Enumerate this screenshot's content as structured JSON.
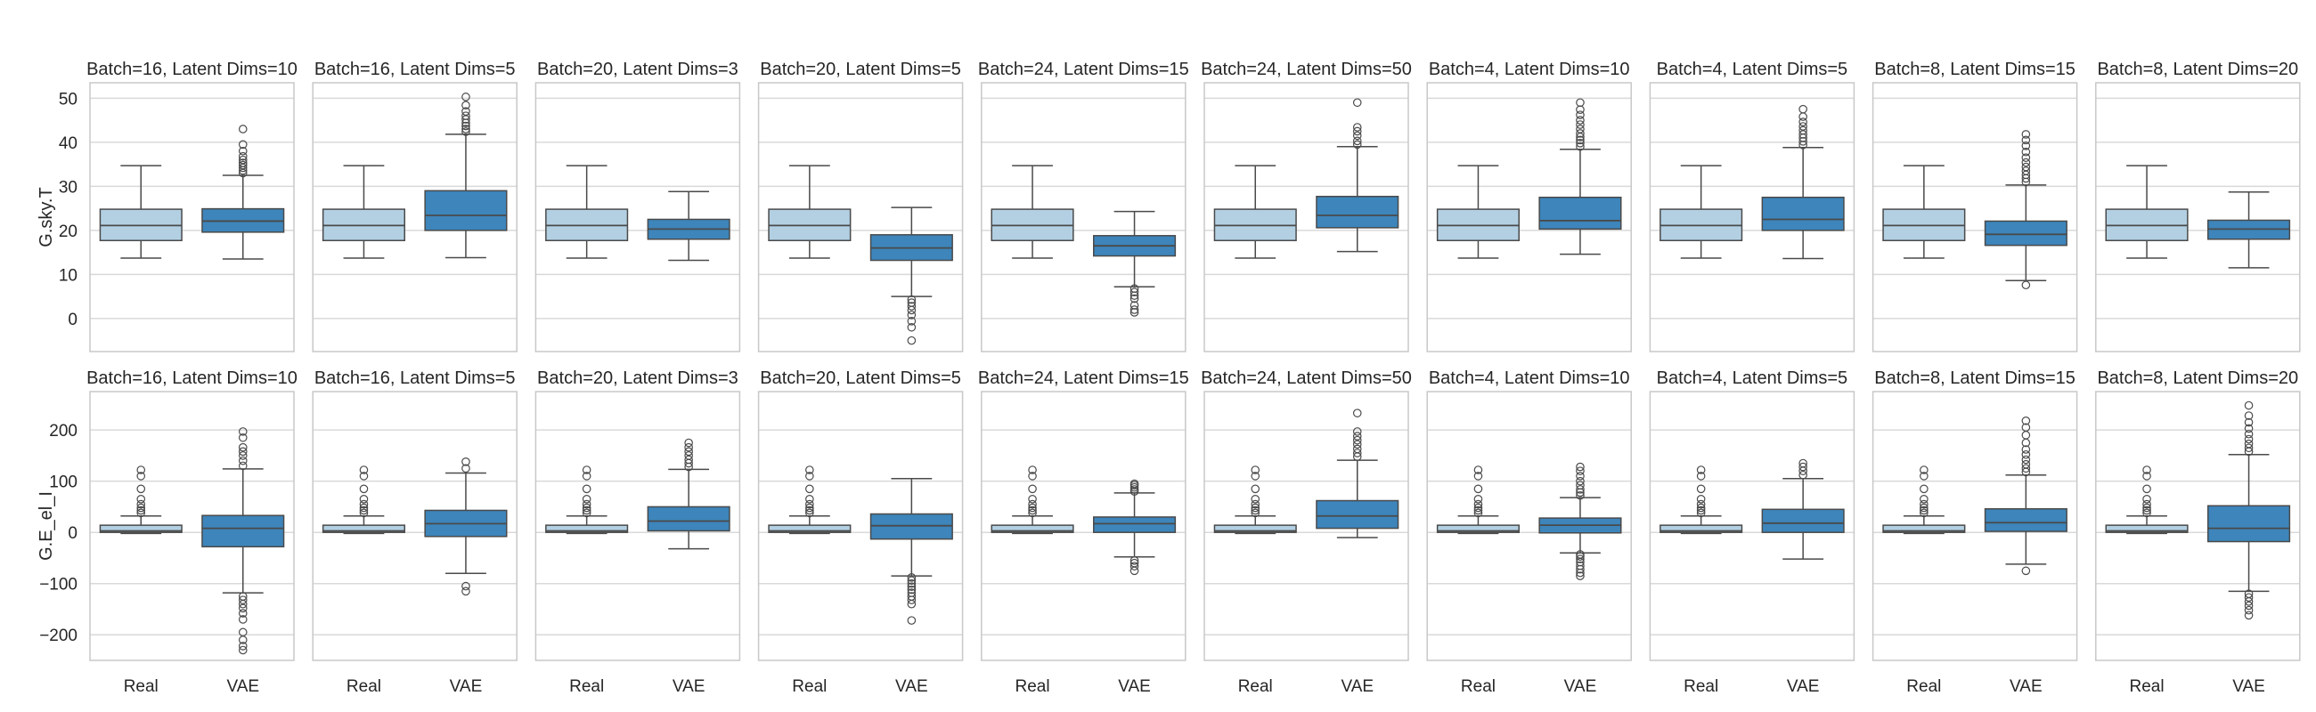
{
  "chart_data": {
    "type": "box",
    "panel_titles": [
      "Batch=16, Latent Dims=10",
      "Batch=16, Latent Dims=5",
      "Batch=20, Latent Dims=3",
      "Batch=20, Latent Dims=5",
      "Batch=24, Latent Dims=15",
      "Batch=24, Latent Dims=50",
      "Batch=4, Latent Dims=10",
      "Batch=4, Latent Dims=5",
      "Batch=8, Latent Dims=15",
      "Batch=8, Latent Dims=20"
    ],
    "categories": [
      "Real",
      "VAE"
    ],
    "colors": {
      "Real": "#b3d0e3",
      "VAE": "#3d85bb",
      "grid": "#d9d9d9",
      "frame": "#c8c8c8",
      "line": "#4a4a4a"
    },
    "grid": true,
    "rows": [
      {
        "ylabel": "G.sky.T",
        "ylim": [
          -7.5,
          53.5
        ],
        "yticks": [
          0,
          10,
          20,
          30,
          40,
          50
        ],
        "ytick_labels": [
          "0",
          "10",
          "20",
          "30",
          "40",
          "50"
        ],
        "panels": [
          {
            "Real": {
              "q1": 17.7,
              "median": 21.1,
              "q3": 24.8,
              "whislo": 13.7,
              "whishi": 34.7,
              "fliers": []
            },
            "VAE": {
              "q1": 19.6,
              "median": 22.1,
              "q3": 24.9,
              "whislo": 13.5,
              "whishi": 32.5,
              "fliers": [
                33.0,
                33.6,
                34.2,
                34.8,
                35.3,
                36.0,
                36.8,
                38.0,
                39.5,
                43.0
              ]
            }
          },
          {
            "Real": {
              "q1": 17.7,
              "median": 21.1,
              "q3": 24.8,
              "whislo": 13.7,
              "whishi": 34.7,
              "fliers": []
            },
            "VAE": {
              "q1": 20.0,
              "median": 23.4,
              "q3": 29.0,
              "whislo": 13.8,
              "whishi": 41.8,
              "fliers": [
                42.4,
                43.0,
                43.7,
                44.4,
                45.2,
                46.0,
                47.0,
                48.4,
                50.3
              ]
            }
          },
          {
            "Real": {
              "q1": 17.7,
              "median": 21.1,
              "q3": 24.8,
              "whislo": 13.7,
              "whishi": 34.7,
              "fliers": []
            },
            "VAE": {
              "q1": 18.0,
              "median": 20.3,
              "q3": 22.5,
              "whislo": 13.2,
              "whishi": 28.8,
              "fliers": []
            }
          },
          {
            "Real": {
              "q1": 17.7,
              "median": 21.1,
              "q3": 24.8,
              "whislo": 13.7,
              "whishi": 34.7,
              "fliers": []
            },
            "VAE": {
              "q1": 13.2,
              "median": 16.0,
              "q3": 19.0,
              "whislo": 5.0,
              "whishi": 25.2,
              "fliers": [
                4.3,
                3.6,
                2.8,
                1.9,
                0.8,
                -0.6,
                -2.0,
                -5.0
              ]
            }
          },
          {
            "Real": {
              "q1": 17.7,
              "median": 21.1,
              "q3": 24.8,
              "whislo": 13.7,
              "whishi": 34.7,
              "fliers": []
            },
            "VAE": {
              "q1": 14.2,
              "median": 16.5,
              "q3": 18.8,
              "whislo": 7.2,
              "whishi": 24.3,
              "fliers": [
                6.8,
                6.0,
                5.2,
                4.5,
                3.0,
                2.0,
                1.4
              ]
            }
          },
          {
            "Real": {
              "q1": 17.7,
              "median": 21.1,
              "q3": 24.8,
              "whislo": 13.7,
              "whishi": 34.7,
              "fliers": []
            },
            "VAE": {
              "q1": 20.6,
              "median": 23.4,
              "q3": 27.7,
              "whislo": 15.2,
              "whishi": 39.0,
              "fliers": [
                39.5,
                40.3,
                41.5,
                42.5,
                43.4,
                49.0
              ]
            }
          },
          {
            "Real": {
              "q1": 17.7,
              "median": 21.1,
              "q3": 24.8,
              "whislo": 13.7,
              "whishi": 34.7,
              "fliers": []
            },
            "VAE": {
              "q1": 20.3,
              "median": 22.2,
              "q3": 27.5,
              "whislo": 14.6,
              "whishi": 38.4,
              "fliers": [
                39.0,
                39.8,
                40.5,
                41.2,
                42.0,
                43.0,
                44.0,
                45.0,
                46.2,
                47.4,
                49.0
              ]
            }
          },
          {
            "Real": {
              "q1": 17.7,
              "median": 21.1,
              "q3": 24.8,
              "whislo": 13.7,
              "whishi": 34.7,
              "fliers": []
            },
            "VAE": {
              "q1": 20.0,
              "median": 22.5,
              "q3": 27.5,
              "whislo": 13.6,
              "whishi": 38.8,
              "fliers": [
                39.4,
                40.2,
                41.0,
                41.8,
                42.7,
                43.6,
                44.6,
                45.8,
                47.5
              ]
            }
          },
          {
            "Real": {
              "q1": 17.7,
              "median": 21.1,
              "q3": 24.8,
              "whislo": 13.7,
              "whishi": 34.7,
              "fliers": []
            },
            "VAE": {
              "q1": 16.6,
              "median": 19.1,
              "q3": 22.1,
              "whislo": 8.6,
              "whishi": 30.3,
              "fliers": [
                31.0,
                31.8,
                32.6,
                33.5,
                34.4,
                35.4,
                36.5,
                37.8,
                39.2,
                40.5,
                41.8,
                7.6
              ]
            }
          },
          {
            "Real": {
              "q1": 17.7,
              "median": 21.1,
              "q3": 24.8,
              "whislo": 13.7,
              "whishi": 34.7,
              "fliers": []
            },
            "VAE": {
              "q1": 18.0,
              "median": 20.3,
              "q3": 22.3,
              "whislo": 11.5,
              "whishi": 28.7,
              "fliers": []
            }
          }
        ]
      },
      {
        "ylabel": "G.E_el_I",
        "ylim": [
          -250,
          275
        ],
        "yticks": [
          -200,
          -100,
          0,
          100,
          200
        ],
        "ytick_labels": [
          "−200",
          "−100",
          "0",
          "100",
          "200"
        ],
        "panels": [
          {
            "Real": {
              "q1": 0,
              "median": 3,
              "q3": 14,
              "whislo": -2,
              "whishi": 32,
              "fliers": [
                38,
                43,
                48,
                55,
                65,
                85,
                110,
                122
              ]
            },
            "VAE": {
              "q1": -28,
              "median": 8,
              "q3": 33,
              "whislo": -118,
              "whishi": 124,
              "fliers": [
                130,
                140,
                150,
                158,
                166,
                185,
                197,
                -125,
                -132,
                -140,
                -148,
                -158,
                -170,
                -195,
                -210,
                -222,
                -230
              ]
            }
          },
          {
            "Real": {
              "q1": 0,
              "median": 3,
              "q3": 14,
              "whislo": -2,
              "whishi": 32,
              "fliers": [
                38,
                43,
                48,
                55,
                65,
                85,
                110,
                122
              ]
            },
            "VAE": {
              "q1": -8,
              "median": 17,
              "q3": 43,
              "whislo": -80,
              "whishi": 116,
              "fliers": [
                125,
                138,
                -105,
                -115
              ]
            }
          },
          {
            "Real": {
              "q1": 0,
              "median": 3,
              "q3": 14,
              "whislo": -2,
              "whishi": 32,
              "fliers": [
                38,
                43,
                48,
                55,
                65,
                85,
                110,
                122
              ]
            },
            "VAE": {
              "q1": 3,
              "median": 22,
              "q3": 50,
              "whislo": -32,
              "whishi": 123,
              "fliers": [
                128,
                135,
                142,
                150,
                158,
                166,
                175
              ]
            }
          },
          {
            "Real": {
              "q1": 0,
              "median": 3,
              "q3": 14,
              "whislo": -2,
              "whishi": 32,
              "fliers": [
                38,
                43,
                48,
                55,
                65,
                85,
                110,
                122
              ]
            },
            "VAE": {
              "q1": -13,
              "median": 13,
              "q3": 36,
              "whislo": -85,
              "whishi": 105,
              "fliers": [
                -88,
                -94,
                -100,
                -106,
                -112,
                -118,
                -125,
                -132,
                -140,
                -172
              ]
            }
          },
          {
            "Real": {
              "q1": 0,
              "median": 3,
              "q3": 14,
              "whislo": -2,
              "whishi": 32,
              "fliers": [
                38,
                43,
                48,
                55,
                65,
                85,
                110,
                122
              ]
            },
            "VAE": {
              "q1": 0,
              "median": 17,
              "q3": 30,
              "whislo": -48,
              "whishi": 77,
              "fliers": [
                80,
                84,
                88,
                92,
                95,
                -55,
                -60,
                -66,
                -75
              ]
            }
          },
          {
            "Real": {
              "q1": 0,
              "median": 3,
              "q3": 14,
              "whislo": -2,
              "whishi": 32,
              "fliers": [
                38,
                43,
                48,
                55,
                65,
                85,
                110,
                122
              ]
            },
            "VAE": {
              "q1": 8,
              "median": 32,
              "q3": 62,
              "whislo": -10,
              "whishi": 141,
              "fliers": [
                148,
                155,
                163,
                172,
                180,
                188,
                197,
                233
              ]
            }
          },
          {
            "Real": {
              "q1": 0,
              "median": 3,
              "q3": 14,
              "whislo": -2,
              "whishi": 32,
              "fliers": [
                38,
                43,
                48,
                55,
                65,
                85,
                110,
                122
              ]
            },
            "VAE": {
              "q1": -1,
              "median": 14,
              "q3": 28,
              "whislo": -40,
              "whishi": 68,
              "fliers": [
                72,
                78,
                84,
                92,
                100,
                110,
                120,
                128,
                -43,
                -47,
                -52,
                -58,
                -65,
                -72,
                -79,
                -85
              ]
            }
          },
          {
            "Real": {
              "q1": 0,
              "median": 3,
              "q3": 14,
              "whislo": -2,
              "whishi": 32,
              "fliers": [
                38,
                43,
                48,
                55,
                65,
                85,
                110,
                122
              ]
            },
            "VAE": {
              "q1": 0,
              "median": 18,
              "q3": 45,
              "whislo": -52,
              "whishi": 105,
              "fliers": [
                112,
                120,
                128,
                135
              ]
            }
          },
          {
            "Real": {
              "q1": 0,
              "median": 3,
              "q3": 14,
              "whislo": -2,
              "whishi": 32,
              "fliers": [
                38,
                43,
                48,
                55,
                65,
                85,
                110,
                122
              ]
            },
            "VAE": {
              "q1": 2,
              "median": 19,
              "q3": 46,
              "whislo": -62,
              "whishi": 112,
              "fliers": [
                118,
                125,
                133,
                142,
                152,
                162,
                175,
                190,
                205,
                218,
                -75
              ]
            }
          },
          {
            "Real": {
              "q1": 0,
              "median": 3,
              "q3": 14,
              "whislo": -2,
              "whishi": 32,
              "fliers": [
                38,
                43,
                48,
                55,
                65,
                85,
                110,
                122
              ]
            },
            "VAE": {
              "q1": -18,
              "median": 8,
              "q3": 52,
              "whislo": -115,
              "whishi": 152,
              "fliers": [
                158,
                165,
                173,
                182,
                192,
                203,
                215,
                228,
                248,
                -120,
                -127,
                -135,
                -143,
                -152,
                -162
              ]
            }
          }
        ]
      }
    ]
  }
}
